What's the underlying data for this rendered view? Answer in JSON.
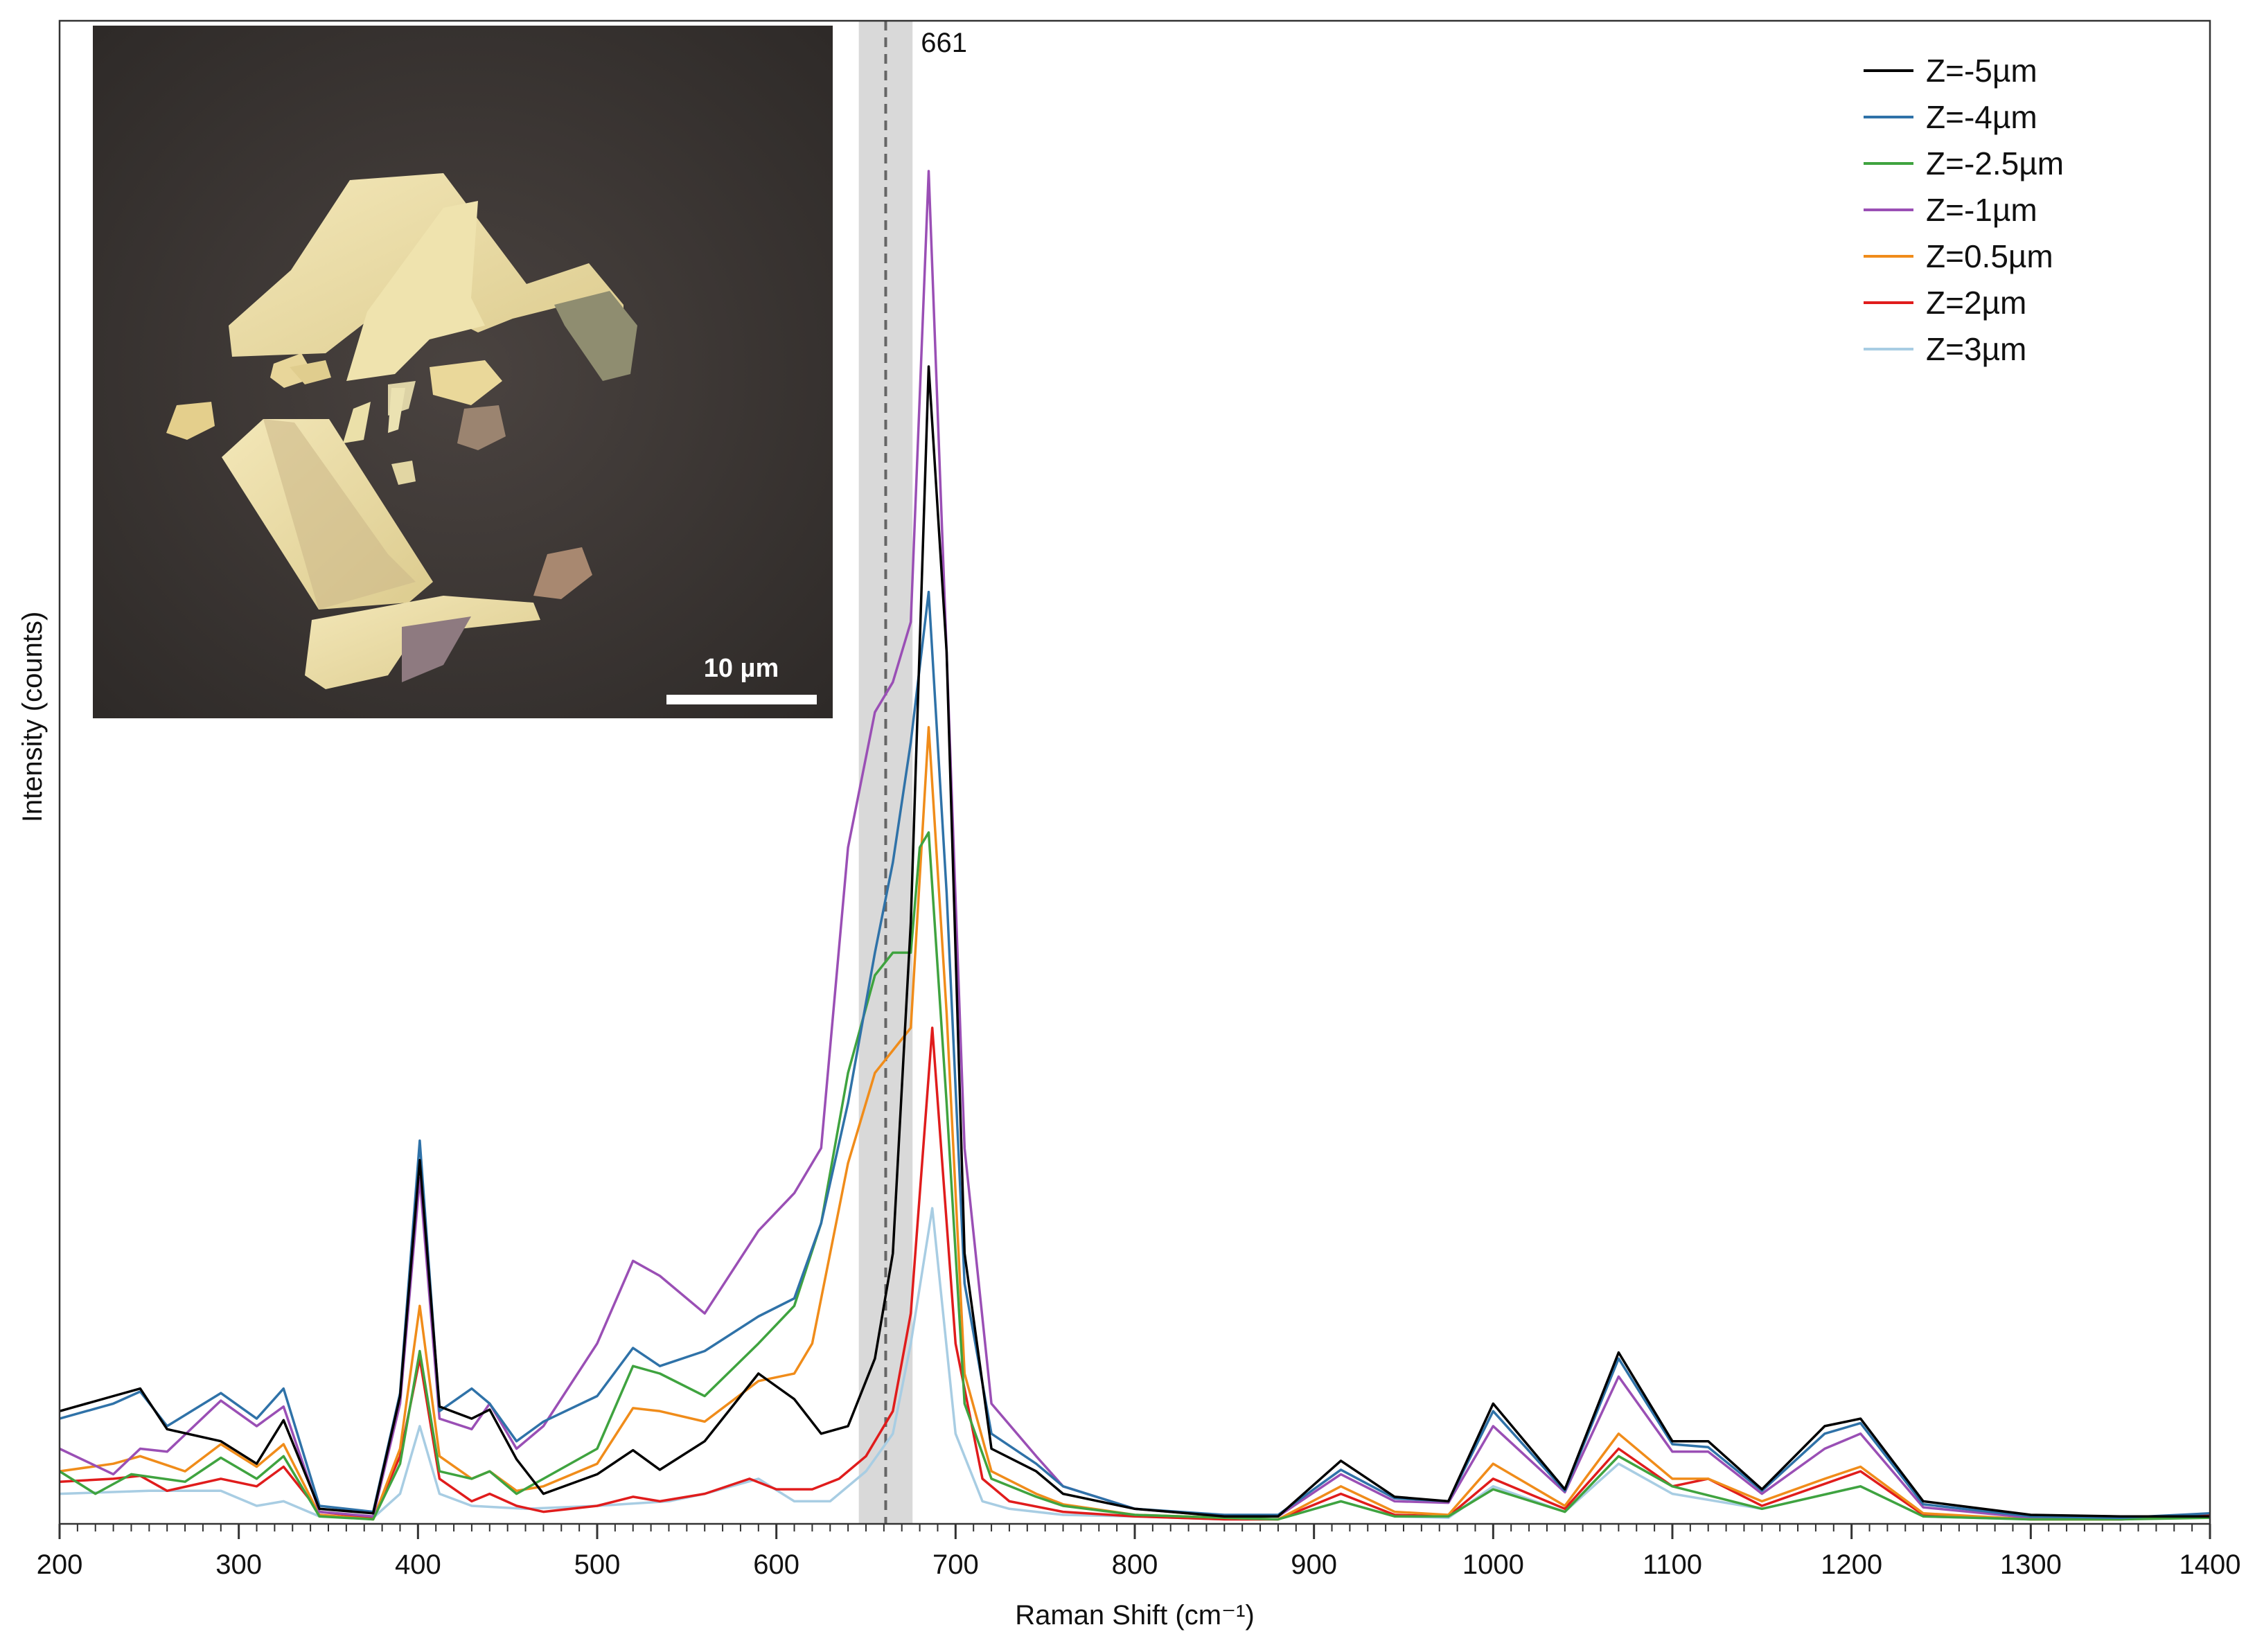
{
  "chart_data": {
    "type": "line",
    "title": "",
    "xlabel": "Raman Shift (cm⁻¹)",
    "ylabel": "Intensity (counts)",
    "xlim": [
      200,
      1400
    ],
    "ylim": [
      0,
      100
    ],
    "x_ticks": [
      200,
      300,
      400,
      500,
      600,
      700,
      800,
      900,
      1000,
      1100,
      1200,
      1300,
      1400
    ],
    "y_tick_labels": "none",
    "grid": false,
    "legend_position": "top-right",
    "annotation": {
      "label": "661",
      "x": 661,
      "band": [
        646,
        676
      ],
      "style": "dashed line with shaded band"
    },
    "inset": {
      "description_free": true,
      "position": "top-left",
      "scale_bar_label": "10 µm"
    },
    "colors": {
      "Z=-5µm": "#000000",
      "Z=-4µm": "#2f72a8",
      "Z=-2.5µm": "#3fa33f",
      "Z=-1µm": "#9a4fb5",
      "Z=0.5µm": "#f08c1a",
      "Z=2µm": "#e01c1c",
      "Z=3µm": "#a8cde3"
    },
    "series": [
      {
        "name": "Z=-5µm",
        "x": [
          200,
          230,
          245,
          260,
          290,
          310,
          325,
          345,
          375,
          390,
          401,
          412,
          430,
          440,
          455,
          470,
          500,
          520,
          535,
          560,
          590,
          610,
          625,
          640,
          655,
          665,
          675,
          685,
          695,
          705,
          720,
          745,
          760,
          800,
          850,
          880,
          915,
          945,
          975,
          1000,
          1040,
          1070,
          1100,
          1120,
          1150,
          1185,
          1205,
          1240,
          1300,
          1350,
          1400
        ],
        "y": [
          7.5,
          8.5,
          9.0,
          6.3,
          5.5,
          4.0,
          6.9,
          1.0,
          0.7,
          8.5,
          24.2,
          7.8,
          7.0,
          7.6,
          4.3,
          2.0,
          3.3,
          4.9,
          3.6,
          5.5,
          10.0,
          8.3,
          6.0,
          6.5,
          11.0,
          18.0,
          40.0,
          77.0,
          58.0,
          18.0,
          5.0,
          3.5,
          2.0,
          1.0,
          0.5,
          0.5,
          4.2,
          1.8,
          1.5,
          8.0,
          2.3,
          11.4,
          5.5,
          5.5,
          2.3,
          6.5,
          7.0,
          1.5,
          0.6,
          0.5,
          0.5
        ]
      },
      {
        "name": "Z=-4µm",
        "x": [
          200,
          230,
          245,
          260,
          290,
          310,
          325,
          345,
          375,
          390,
          401,
          412,
          430,
          440,
          455,
          470,
          500,
          520,
          535,
          560,
          590,
          610,
          625,
          640,
          655,
          665,
          675,
          685,
          695,
          705,
          720,
          745,
          760,
          800,
          850,
          880,
          915,
          945,
          975,
          1000,
          1040,
          1070,
          1100,
          1120,
          1150,
          1185,
          1205,
          1240,
          1300,
          1350,
          1400
        ],
        "y": [
          7.0,
          8.0,
          8.8,
          6.5,
          8.7,
          7.0,
          9.0,
          1.2,
          0.8,
          8.7,
          25.5,
          7.5,
          9.0,
          8.0,
          5.5,
          6.8,
          8.5,
          11.7,
          10.5,
          11.5,
          13.8,
          15.0,
          20.0,
          28.0,
          38.0,
          44.0,
          52.0,
          62.0,
          42.0,
          16.0,
          6.0,
          4.0,
          2.5,
          1.0,
          0.6,
          0.6,
          3.6,
          1.7,
          1.5,
          7.5,
          2.2,
          11.0,
          5.3,
          5.1,
          2.2,
          6.0,
          6.7,
          1.3,
          0.5,
          0.4,
          0.7
        ]
      },
      {
        "name": "Z=-2.5µm",
        "x": [
          200,
          220,
          240,
          270,
          290,
          310,
          325,
          345,
          375,
          390,
          401,
          412,
          430,
          440,
          455,
          470,
          500,
          520,
          535,
          560,
          590,
          610,
          625,
          640,
          655,
          665,
          675,
          680,
          685,
          695,
          705,
          720,
          745,
          760,
          800,
          850,
          880,
          915,
          945,
          975,
          1000,
          1040,
          1070,
          1100,
          1150,
          1205,
          1240,
          1300,
          1350,
          1400
        ],
        "y": [
          3.5,
          2.0,
          3.3,
          2.8,
          4.4,
          3.0,
          4.5,
          0.5,
          0.3,
          4.0,
          11.5,
          3.5,
          3.0,
          3.5,
          2.0,
          3.0,
          5.0,
          10.5,
          10.0,
          8.5,
          12.0,
          14.5,
          20.0,
          30.0,
          36.5,
          38.0,
          38.0,
          45.0,
          46.0,
          28.0,
          8.0,
          3.0,
          1.8,
          1.2,
          0.6,
          0.4,
          0.3,
          1.5,
          0.5,
          0.5,
          2.3,
          0.8,
          4.5,
          2.5,
          1.0,
          2.5,
          0.5,
          0.3,
          0.3,
          0.4
        ]
      },
      {
        "name": "Z=-1µm",
        "x": [
          200,
          230,
          245,
          260,
          290,
          310,
          325,
          345,
          375,
          390,
          401,
          412,
          430,
          440,
          455,
          470,
          500,
          520,
          535,
          560,
          590,
          610,
          625,
          640,
          655,
          665,
          675,
          685,
          695,
          705,
          720,
          745,
          760,
          800,
          850,
          880,
          915,
          945,
          975,
          1000,
          1040,
          1070,
          1100,
          1120,
          1150,
          1185,
          1205,
          1240,
          1300,
          1350,
          1400
        ],
        "y": [
          5.0,
          3.3,
          5.0,
          4.8,
          8.2,
          6.5,
          7.8,
          0.8,
          0.5,
          8.0,
          23.0,
          7.0,
          6.3,
          8.0,
          5.0,
          6.5,
          12.0,
          17.5,
          16.5,
          14.0,
          19.5,
          22.0,
          25.0,
          45.0,
          54.0,
          56.0,
          60.0,
          90.0,
          58.0,
          25.0,
          8.0,
          4.5,
          2.5,
          1.0,
          0.5,
          0.5,
          3.3,
          1.5,
          1.4,
          6.5,
          2.1,
          9.8,
          4.8,
          4.8,
          2.0,
          5.0,
          6.0,
          1.1,
          0.4,
          0.3,
          0.5
        ]
      },
      {
        "name": "Z=0.5µm",
        "x": [
          200,
          230,
          245,
          270,
          290,
          310,
          325,
          345,
          375,
          390,
          401,
          412,
          430,
          440,
          455,
          470,
          500,
          520,
          535,
          560,
          590,
          610,
          620,
          630,
          640,
          655,
          665,
          675,
          685,
          695,
          705,
          720,
          745,
          760,
          800,
          850,
          880,
          915,
          945,
          975,
          1000,
          1040,
          1070,
          1100,
          1120,
          1150,
          1185,
          1205,
          1240,
          1300,
          1350,
          1400
        ],
        "y": [
          3.5,
          4.0,
          4.5,
          3.5,
          5.3,
          3.8,
          5.3,
          0.6,
          0.3,
          5.0,
          14.5,
          4.5,
          3.0,
          3.5,
          2.2,
          2.5,
          4.0,
          7.7,
          7.5,
          6.8,
          9.5,
          10.0,
          12.0,
          18.0,
          24.0,
          30.0,
          31.5,
          33.0,
          53.0,
          34.0,
          10.0,
          3.5,
          2.0,
          1.3,
          0.6,
          0.4,
          0.3,
          2.5,
          0.8,
          0.6,
          4.0,
          1.2,
          6.0,
          3.0,
          3.0,
          1.5,
          3.0,
          3.8,
          0.7,
          0.3,
          0.3,
          0.5
        ]
      },
      {
        "name": "Z=2µm",
        "x": [
          200,
          230,
          245,
          260,
          290,
          310,
          325,
          345,
          375,
          390,
          401,
          412,
          430,
          440,
          455,
          470,
          500,
          520,
          535,
          560,
          585,
          600,
          620,
          635,
          650,
          665,
          675,
          687,
          700,
          715,
          730,
          760,
          800,
          850,
          880,
          915,
          945,
          975,
          1000,
          1040,
          1070,
          1100,
          1120,
          1150,
          1205,
          1240,
          1300,
          1350,
          1400
        ],
        "y": [
          2.8,
          3.0,
          3.2,
          2.2,
          3.0,
          2.5,
          3.8,
          0.8,
          0.4,
          4.5,
          11.0,
          3.0,
          1.5,
          2.0,
          1.2,
          0.8,
          1.2,
          1.8,
          1.5,
          2.0,
          3.0,
          2.3,
          2.3,
          3.0,
          4.5,
          7.5,
          14.0,
          33.0,
          12.0,
          3.0,
          1.5,
          0.8,
          0.5,
          0.3,
          0.3,
          2.0,
          0.6,
          0.5,
          3.0,
          1.0,
          5.0,
          2.5,
          3.0,
          1.2,
          3.5,
          0.6,
          0.3,
          0.3,
          0.6
        ]
      },
      {
        "name": "Z=3µm",
        "x": [
          200,
          250,
          290,
          310,
          325,
          345,
          375,
          390,
          401,
          412,
          430,
          460,
          500,
          540,
          560,
          590,
          610,
          630,
          650,
          665,
          675,
          687,
          700,
          715,
          730,
          760,
          800,
          850,
          880,
          915,
          945,
          975,
          1000,
          1040,
          1070,
          1100,
          1150,
          1205,
          1240,
          1300,
          1350,
          1400
        ],
        "y": [
          2.0,
          2.2,
          2.2,
          1.2,
          1.5,
          0.5,
          0.4,
          2.0,
          6.5,
          2.0,
          1.2,
          1.0,
          1.2,
          1.5,
          2.0,
          3.0,
          1.5,
          1.5,
          3.5,
          6.0,
          12.0,
          21.0,
          6.0,
          1.5,
          1.0,
          0.6,
          0.5,
          0.3,
          0.3,
          1.5,
          0.5,
          0.4,
          2.5,
          0.8,
          4.0,
          2.0,
          1.0,
          2.5,
          0.5,
          0.3,
          0.3,
          0.6
        ]
      }
    ]
  }
}
